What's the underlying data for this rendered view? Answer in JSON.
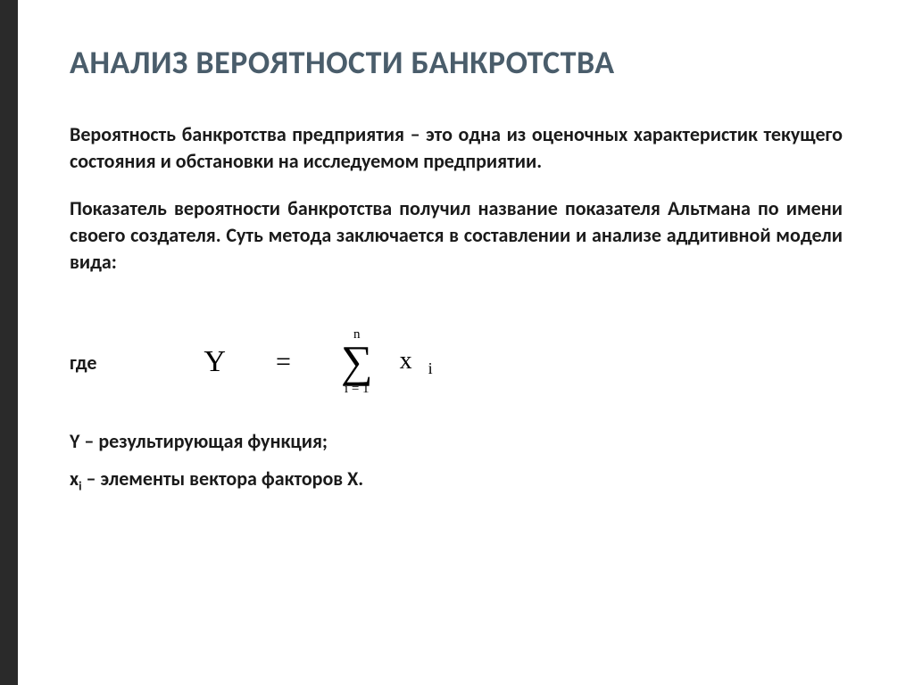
{
  "title": "АНАЛИЗ ВЕРОЯТНОСТИ БАНКРОТСТВА",
  "para1": "Вероятность банкротства предприятия – это одна из оценочных характеристик текущего состояния и обстановки на исследуемом предприятии.",
  "para2": "Показатель вероятности банкротства получил название показателя Альтмана по имени своего создателя. Суть метода заключается в составлении и анализе аддитивной модели вида:",
  "where": "где",
  "formula": {
    "lhs": "Y",
    "eq": "=",
    "sum_top": "n",
    "sigma": "∑",
    "sum_bottom": "i = 1",
    "x": "x",
    "x_sub": "i"
  },
  "def1": "Y – результирующая функция;",
  "def2_x": "x",
  "def2_sub": "i",
  "def2_rest": " – элементы вектора факторов X.",
  "colors": {
    "stripe": "#2a2a2a",
    "title": "#4a5d6b",
    "text": "#1a1a1a",
    "bg": "#ffffff"
  },
  "typography": {
    "title_size": 36,
    "body_size": 22,
    "formula_family": "Times New Roman",
    "body_family": "Calibri"
  }
}
